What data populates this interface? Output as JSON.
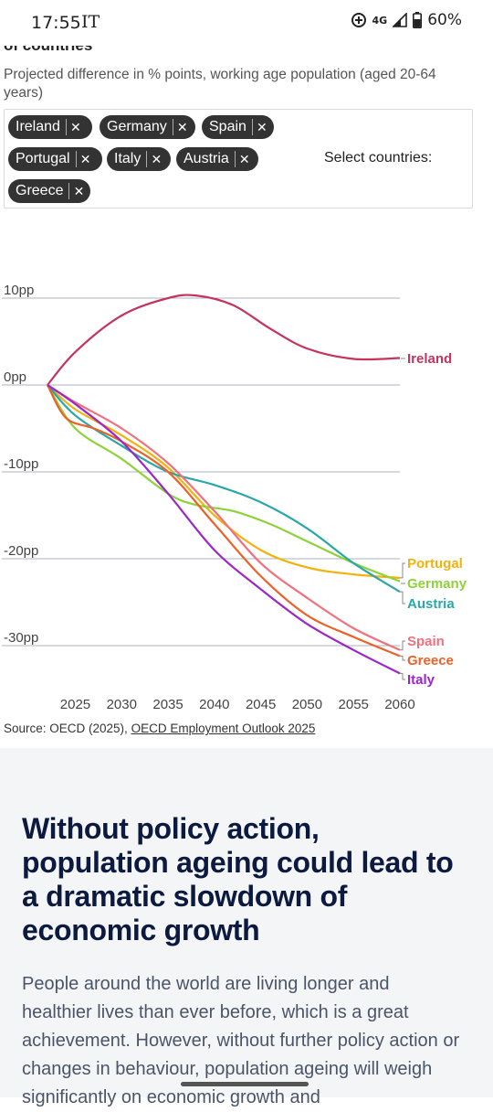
{
  "status_bar": {
    "time": "17:55",
    "carrier": "IT",
    "network": "4G",
    "battery": "60%"
  },
  "chart_header": {
    "title_partial": "of countries",
    "subtitle": "Projected difference in % points, working age population (aged 20-64 years)"
  },
  "filter": {
    "selected": [
      "Ireland",
      "Germany",
      "Spain",
      "Portugal",
      "Italy",
      "Austria",
      "Greece"
    ],
    "select_label": "Select countries:",
    "remove_glyph": "✕"
  },
  "chart_data": {
    "type": "line",
    "title": "",
    "xlabel": "",
    "ylabel": "",
    "xlim": [
      2022,
      2060
    ],
    "ylim": [
      -33,
      10
    ],
    "y_ticks": [
      {
        "value": 10,
        "label": "10pp"
      },
      {
        "value": 0,
        "label": "0pp"
      },
      {
        "value": -10,
        "label": "-10pp"
      },
      {
        "value": -20,
        "label": "-20pp"
      },
      {
        "value": -30,
        "label": "-30pp"
      }
    ],
    "x_ticks": [
      "2025",
      "2030",
      "2035",
      "2040",
      "2045",
      "2050",
      "2055",
      "2060"
    ],
    "grid": "horizontal",
    "legend": "end-labels-right",
    "series": [
      {
        "name": "Ireland",
        "color": "#c4345c",
        "points": [
          [
            2022,
            0
          ],
          [
            2025,
            3.8
          ],
          [
            2030,
            8
          ],
          [
            2035,
            10
          ],
          [
            2038,
            10.3
          ],
          [
            2042,
            9.2
          ],
          [
            2046,
            6.5
          ],
          [
            2050,
            4.2
          ],
          [
            2055,
            3
          ],
          [
            2060,
            3.1
          ]
        ]
      },
      {
        "name": "Portugal",
        "color": "#f2b20f",
        "points": [
          [
            2022,
            0
          ],
          [
            2025,
            -2.8
          ],
          [
            2030,
            -5.8
          ],
          [
            2035,
            -9.5
          ],
          [
            2040,
            -15
          ],
          [
            2045,
            -19
          ],
          [
            2050,
            -21
          ],
          [
            2055,
            -21.8
          ],
          [
            2060,
            -22.2
          ]
        ]
      },
      {
        "name": "Germany",
        "color": "#8ed23a",
        "points": [
          [
            2022,
            0
          ],
          [
            2025,
            -5
          ],
          [
            2030,
            -8.5
          ],
          [
            2035,
            -12.5
          ],
          [
            2038,
            -13.8
          ],
          [
            2042,
            -14.5
          ],
          [
            2046,
            -16
          ],
          [
            2050,
            -18
          ],
          [
            2055,
            -20.5
          ],
          [
            2060,
            -22.6
          ]
        ]
      },
      {
        "name": "Austria",
        "color": "#2ba7a7",
        "points": [
          [
            2022,
            0
          ],
          [
            2025,
            -3.5
          ],
          [
            2030,
            -7
          ],
          [
            2035,
            -10
          ],
          [
            2040,
            -11.5
          ],
          [
            2045,
            -13.5
          ],
          [
            2050,
            -16.5
          ],
          [
            2055,
            -20.5
          ],
          [
            2060,
            -23.8
          ]
        ]
      },
      {
        "name": "Spain",
        "color": "#f0707e",
        "points": [
          [
            2022,
            0
          ],
          [
            2025,
            -2
          ],
          [
            2030,
            -5
          ],
          [
            2035,
            -9
          ],
          [
            2040,
            -14.5
          ],
          [
            2045,
            -20.5
          ],
          [
            2050,
            -24.5
          ],
          [
            2055,
            -28
          ],
          [
            2060,
            -30.5
          ]
        ]
      },
      {
        "name": "Greece",
        "color": "#ec6128",
        "points": [
          [
            2022,
            0
          ],
          [
            2024,
            -3.8
          ],
          [
            2027,
            -5
          ],
          [
            2030,
            -6.5
          ],
          [
            2035,
            -10
          ],
          [
            2040,
            -16
          ],
          [
            2045,
            -22
          ],
          [
            2050,
            -26.5
          ],
          [
            2055,
            -29
          ],
          [
            2060,
            -31.2
          ]
        ]
      },
      {
        "name": "Italy",
        "color": "#9b27c7",
        "points": [
          [
            2022,
            0
          ],
          [
            2025,
            -2.2
          ],
          [
            2030,
            -6.5
          ],
          [
            2035,
            -12.5
          ],
          [
            2040,
            -19
          ],
          [
            2045,
            -23.5
          ],
          [
            2050,
            -27.5
          ],
          [
            2055,
            -30.5
          ],
          [
            2060,
            -33.2
          ]
        ]
      }
    ]
  },
  "source": {
    "prefix": "Source: OECD (2025), ",
    "link": "OECD Employment Outlook 2025"
  },
  "article": {
    "title": "Without policy action, population ageing could lead to a dramatic slowdown of economic growth",
    "body": "People around the world are living longer and healthier lives than ever before, which is a great achievement. However, without further policy action or changes in behaviour, population ageing will weigh significantly on economic growth and"
  }
}
